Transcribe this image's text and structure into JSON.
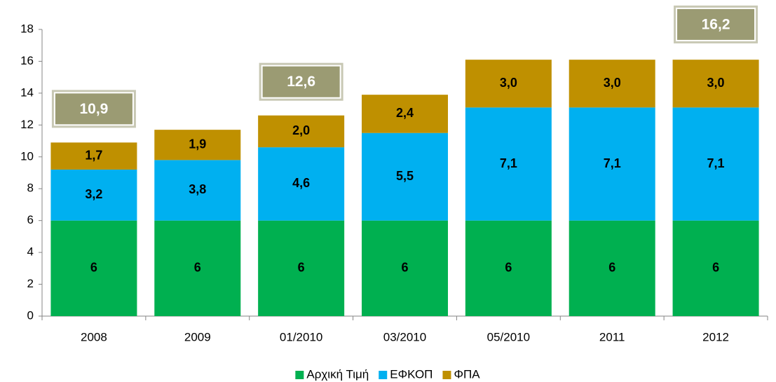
{
  "chart_data": {
    "type": "stacked_bar",
    "categories": [
      "2008",
      "2009",
      "01/2010",
      "03/2010",
      "05/2010",
      "2011",
      "2012"
    ],
    "series": [
      {
        "name": "Αρχική Τιμή",
        "color": "#00b050",
        "values": [
          6,
          6,
          6,
          6,
          6,
          6,
          6
        ]
      },
      {
        "name": "ΕΦΚΟΠ",
        "color": "#00b0f0",
        "values": [
          3.2,
          3.8,
          4.6,
          5.5,
          7.1,
          7.1,
          7.1
        ],
        "value_labels": [
          "3,2",
          "3,8",
          "4,6",
          "5,5",
          "7,1",
          "7,1",
          "7,1"
        ]
      },
      {
        "name": "ΦΠΑ",
        "color": "#bf9000",
        "values": [
          1.7,
          1.9,
          2.0,
          2.4,
          3.0,
          3.0,
          3.0
        ],
        "value_labels": [
          "1,7",
          "1,9",
          "2,0",
          "2,4",
          "3,0",
          "3,0",
          "3,0"
        ]
      }
    ],
    "annotations": [
      {
        "category": "2008",
        "value": 10.9,
        "label": "10,9"
      },
      {
        "category": "01/2010",
        "value": 12.6,
        "label": "12,6"
      },
      {
        "category": "2012",
        "value": 16.2,
        "label": "16,2"
      }
    ],
    "ylim": [
      0,
      18
    ],
    "yticks": [
      0,
      2,
      4,
      6,
      8,
      10,
      12,
      14,
      16,
      18
    ],
    "grid": false,
    "legend": "bottom"
  }
}
